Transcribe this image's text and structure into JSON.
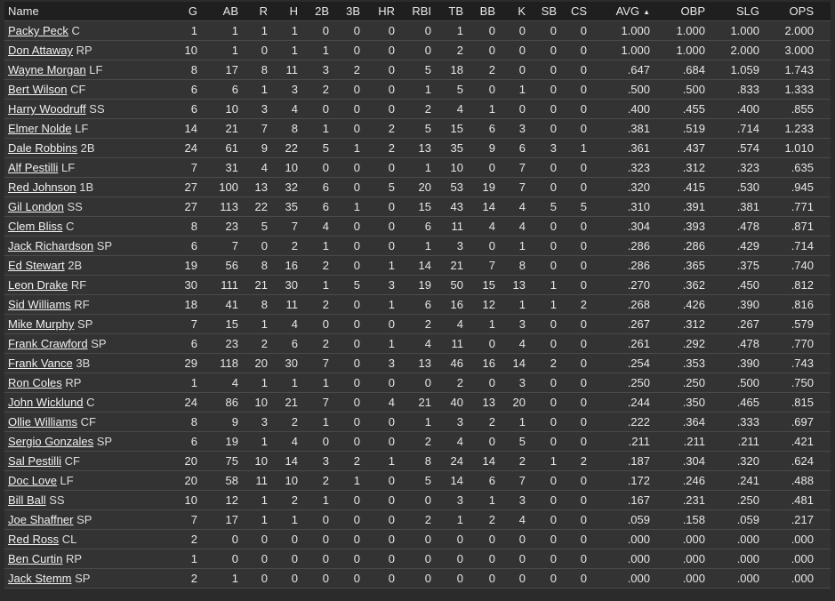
{
  "table": {
    "columns": [
      "Name",
      "G",
      "AB",
      "R",
      "H",
      "2B",
      "3B",
      "HR",
      "RBI",
      "TB",
      "BB",
      "K",
      "SB",
      "CS",
      "AVG",
      "OBP",
      "SLG",
      "OPS"
    ],
    "sorted_column": "AVG",
    "sort_indicator": "▲",
    "rows": [
      {
        "name": "Packy Peck",
        "pos": "C",
        "stats": [
          "1",
          "1",
          "1",
          "1",
          "0",
          "0",
          "0",
          "0",
          "1",
          "0",
          "0",
          "0",
          "0",
          "1.000",
          "1.000",
          "1.000",
          "2.000"
        ]
      },
      {
        "name": "Don Attaway",
        "pos": "RP",
        "stats": [
          "10",
          "1",
          "0",
          "1",
          "1",
          "0",
          "0",
          "0",
          "2",
          "0",
          "0",
          "0",
          "0",
          "1.000",
          "1.000",
          "2.000",
          "3.000"
        ]
      },
      {
        "name": "Wayne Morgan",
        "pos": "LF",
        "stats": [
          "8",
          "17",
          "8",
          "11",
          "3",
          "2",
          "0",
          "5",
          "18",
          "2",
          "0",
          "0",
          "0",
          ".647",
          ".684",
          "1.059",
          "1.743"
        ]
      },
      {
        "name": "Bert Wilson",
        "pos": "CF",
        "stats": [
          "6",
          "6",
          "1",
          "3",
          "2",
          "0",
          "0",
          "1",
          "5",
          "0",
          "1",
          "0",
          "0",
          ".500",
          ".500",
          ".833",
          "1.333"
        ]
      },
      {
        "name": "Harry Woodruff",
        "pos": "SS",
        "stats": [
          "6",
          "10",
          "3",
          "4",
          "0",
          "0",
          "0",
          "2",
          "4",
          "1",
          "0",
          "0",
          "0",
          ".400",
          ".455",
          ".400",
          ".855"
        ]
      },
      {
        "name": "Elmer Nolde",
        "pos": "LF",
        "stats": [
          "14",
          "21",
          "7",
          "8",
          "1",
          "0",
          "2",
          "5",
          "15",
          "6",
          "3",
          "0",
          "0",
          ".381",
          ".519",
          ".714",
          "1.233"
        ]
      },
      {
        "name": "Dale Robbins",
        "pos": "2B",
        "stats": [
          "24",
          "61",
          "9",
          "22",
          "5",
          "1",
          "2",
          "13",
          "35",
          "9",
          "6",
          "3",
          "1",
          ".361",
          ".437",
          ".574",
          "1.010"
        ]
      },
      {
        "name": "Alf Pestilli",
        "pos": "LF",
        "stats": [
          "7",
          "31",
          "4",
          "10",
          "0",
          "0",
          "0",
          "1",
          "10",
          "0",
          "7",
          "0",
          "0",
          ".323",
          ".312",
          ".323",
          ".635"
        ]
      },
      {
        "name": "Red Johnson",
        "pos": "1B",
        "stats": [
          "27",
          "100",
          "13",
          "32",
          "6",
          "0",
          "5",
          "20",
          "53",
          "19",
          "7",
          "0",
          "0",
          ".320",
          ".415",
          ".530",
          ".945"
        ]
      },
      {
        "name": "Gil London",
        "pos": "SS",
        "stats": [
          "27",
          "113",
          "22",
          "35",
          "6",
          "1",
          "0",
          "15",
          "43",
          "14",
          "4",
          "5",
          "5",
          ".310",
          ".391",
          ".381",
          ".771"
        ]
      },
      {
        "name": "Clem Bliss",
        "pos": "C",
        "stats": [
          "8",
          "23",
          "5",
          "7",
          "4",
          "0",
          "0",
          "6",
          "11",
          "4",
          "4",
          "0",
          "0",
          ".304",
          ".393",
          ".478",
          ".871"
        ]
      },
      {
        "name": "Jack Richardson",
        "pos": "SP",
        "stats": [
          "6",
          "7",
          "0",
          "2",
          "1",
          "0",
          "0",
          "1",
          "3",
          "0",
          "1",
          "0",
          "0",
          ".286",
          ".286",
          ".429",
          ".714"
        ]
      },
      {
        "name": "Ed Stewart",
        "pos": "2B",
        "stats": [
          "19",
          "56",
          "8",
          "16",
          "2",
          "0",
          "1",
          "14",
          "21",
          "7",
          "8",
          "0",
          "0",
          ".286",
          ".365",
          ".375",
          ".740"
        ]
      },
      {
        "name": "Leon Drake",
        "pos": "RF",
        "stats": [
          "30",
          "111",
          "21",
          "30",
          "1",
          "5",
          "3",
          "19",
          "50",
          "15",
          "13",
          "1",
          "0",
          ".270",
          ".362",
          ".450",
          ".812"
        ]
      },
      {
        "name": "Sid Williams",
        "pos": "RF",
        "stats": [
          "18",
          "41",
          "8",
          "11",
          "2",
          "0",
          "1",
          "6",
          "16",
          "12",
          "1",
          "1",
          "2",
          ".268",
          ".426",
          ".390",
          ".816"
        ]
      },
      {
        "name": "Mike Murphy",
        "pos": "SP",
        "stats": [
          "7",
          "15",
          "1",
          "4",
          "0",
          "0",
          "0",
          "2",
          "4",
          "1",
          "3",
          "0",
          "0",
          ".267",
          ".312",
          ".267",
          ".579"
        ]
      },
      {
        "name": "Frank Crawford",
        "pos": "SP",
        "stats": [
          "6",
          "23",
          "2",
          "6",
          "2",
          "0",
          "1",
          "4",
          "11",
          "0",
          "4",
          "0",
          "0",
          ".261",
          ".292",
          ".478",
          ".770"
        ]
      },
      {
        "name": "Frank Vance",
        "pos": "3B",
        "stats": [
          "29",
          "118",
          "20",
          "30",
          "7",
          "0",
          "3",
          "13",
          "46",
          "16",
          "14",
          "2",
          "0",
          ".254",
          ".353",
          ".390",
          ".743"
        ]
      },
      {
        "name": "Ron Coles",
        "pos": "RP",
        "stats": [
          "1",
          "4",
          "1",
          "1",
          "1",
          "0",
          "0",
          "0",
          "2",
          "0",
          "3",
          "0",
          "0",
          ".250",
          ".250",
          ".500",
          ".750"
        ]
      },
      {
        "name": "John Wicklund",
        "pos": "C",
        "stats": [
          "24",
          "86",
          "10",
          "21",
          "7",
          "0",
          "4",
          "21",
          "40",
          "13",
          "20",
          "0",
          "0",
          ".244",
          ".350",
          ".465",
          ".815"
        ]
      },
      {
        "name": "Ollie Williams",
        "pos": "CF",
        "stats": [
          "8",
          "9",
          "3",
          "2",
          "1",
          "0",
          "0",
          "1",
          "3",
          "2",
          "1",
          "0",
          "0",
          ".222",
          ".364",
          ".333",
          ".697"
        ]
      },
      {
        "name": "Sergio Gonzales",
        "pos": "SP",
        "stats": [
          "6",
          "19",
          "1",
          "4",
          "0",
          "0",
          "0",
          "2",
          "4",
          "0",
          "5",
          "0",
          "0",
          ".211",
          ".211",
          ".211",
          ".421"
        ]
      },
      {
        "name": "Sal Pestilli",
        "pos": "CF",
        "stats": [
          "20",
          "75",
          "10",
          "14",
          "3",
          "2",
          "1",
          "8",
          "24",
          "14",
          "2",
          "1",
          "2",
          ".187",
          ".304",
          ".320",
          ".624"
        ]
      },
      {
        "name": "Doc Love",
        "pos": "LF",
        "stats": [
          "20",
          "58",
          "11",
          "10",
          "2",
          "1",
          "0",
          "5",
          "14",
          "6",
          "7",
          "0",
          "0",
          ".172",
          ".246",
          ".241",
          ".488"
        ]
      },
      {
        "name": "Bill Ball",
        "pos": "SS",
        "stats": [
          "10",
          "12",
          "1",
          "2",
          "1",
          "0",
          "0",
          "0",
          "3",
          "1",
          "3",
          "0",
          "0",
          ".167",
          ".231",
          ".250",
          ".481"
        ]
      },
      {
        "name": "Joe Shaffner",
        "pos": "SP",
        "stats": [
          "7",
          "17",
          "1",
          "1",
          "0",
          "0",
          "0",
          "2",
          "1",
          "2",
          "4",
          "0",
          "0",
          ".059",
          ".158",
          ".059",
          ".217"
        ]
      },
      {
        "name": "Red Ross",
        "pos": "CL",
        "stats": [
          "2",
          "0",
          "0",
          "0",
          "0",
          "0",
          "0",
          "0",
          "0",
          "0",
          "0",
          "0",
          "0",
          ".000",
          ".000",
          ".000",
          ".000"
        ]
      },
      {
        "name": "Ben Curtin",
        "pos": "RP",
        "stats": [
          "1",
          "0",
          "0",
          "0",
          "0",
          "0",
          "0",
          "0",
          "0",
          "0",
          "0",
          "0",
          "0",
          ".000",
          ".000",
          ".000",
          ".000"
        ]
      },
      {
        "name": "Jack Stemm",
        "pos": "SP",
        "stats": [
          "2",
          "1",
          "0",
          "0",
          "0",
          "0",
          "0",
          "0",
          "0",
          "0",
          "0",
          "0",
          "0",
          ".000",
          ".000",
          ".000",
          ".000"
        ]
      }
    ]
  }
}
